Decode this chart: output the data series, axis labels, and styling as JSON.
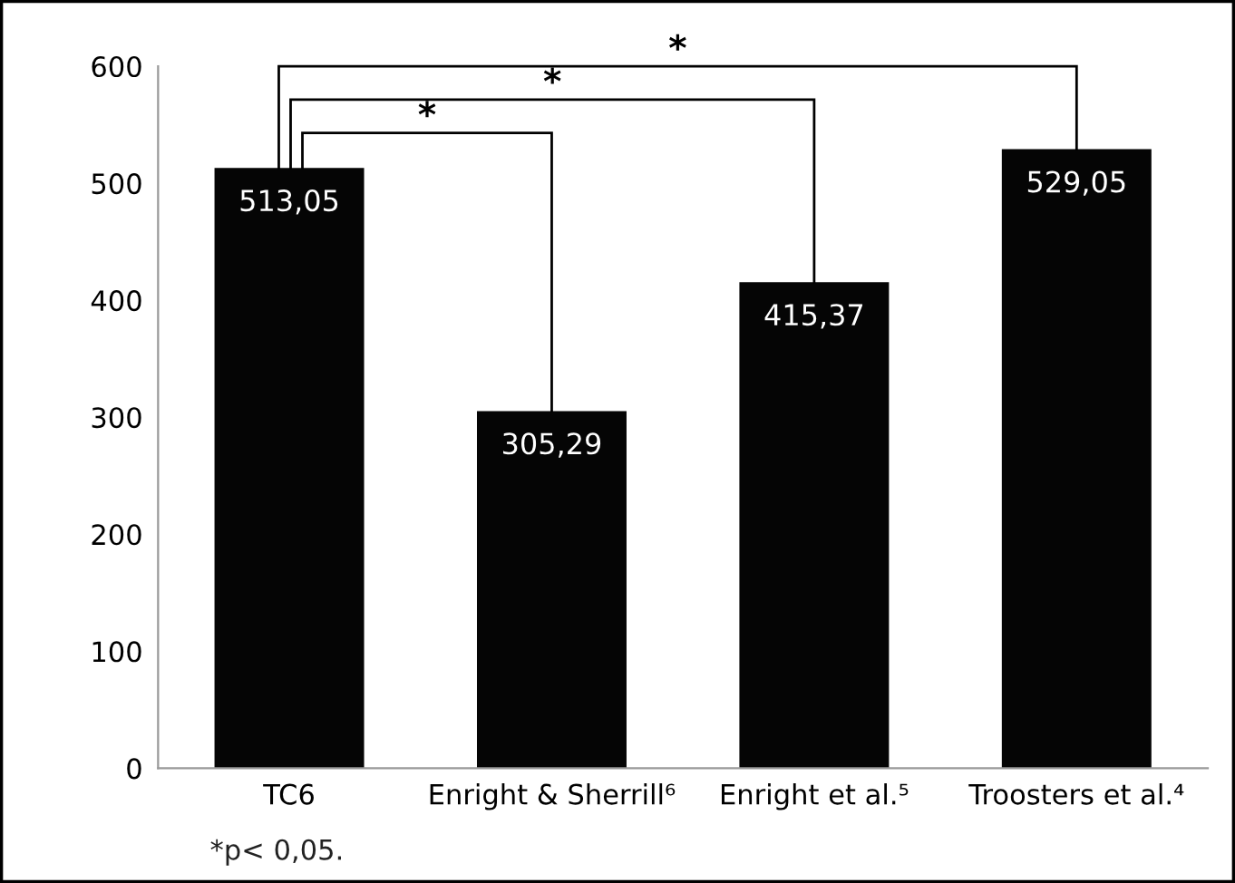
{
  "chart_data": {
    "type": "bar",
    "categories": [
      "TC6",
      "Enright & Sherrill⁶",
      "Enright et al.⁵",
      "Troosters et al.⁴"
    ],
    "values": [
      513.05,
      305.29,
      415.37,
      529.05
    ],
    "value_labels": [
      "513,05",
      "305,29",
      "415,37",
      "529,05"
    ],
    "color": "#050505",
    "ylim": [
      0,
      600
    ],
    "yticks": [
      0,
      100,
      200,
      300,
      400,
      500,
      600
    ],
    "grid": false,
    "legend": false,
    "annotations": [
      "*",
      "*",
      "*",
      "*p< 0,05."
    ]
  }
}
